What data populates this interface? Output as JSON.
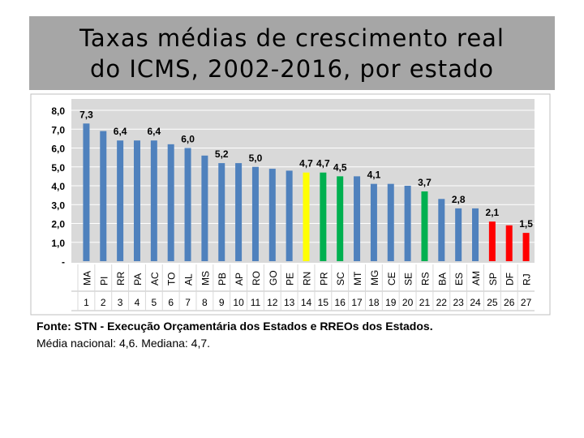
{
  "slide": {
    "title_line1": "Taxas médias de crescimento real",
    "title_line2": "do ICMS, 2002-2016, por estado"
  },
  "chart_data": {
    "type": "bar",
    "title": "Taxas médias de crescimento real do ICMS, 2002-2016, por estado",
    "categories": [
      "MA",
      "PI",
      "RR",
      "PA",
      "AC",
      "TO",
      "AL",
      "MS",
      "PB",
      "AP",
      "RO",
      "GO",
      "PE",
      "RN",
      "PR",
      "SC",
      "MT",
      "MG",
      "CE",
      "SE",
      "RS",
      "BA",
      "ES",
      "AM",
      "SP",
      "DF",
      "RJ"
    ],
    "ranks": [
      "1",
      "2",
      "3",
      "4",
      "5",
      "6",
      "7",
      "8",
      "9",
      "10",
      "11",
      "12",
      "13",
      "14",
      "15",
      "16",
      "17",
      "18",
      "19",
      "20",
      "21",
      "22",
      "23",
      "24",
      "25",
      "26",
      "27"
    ],
    "values": [
      7.3,
      6.9,
      6.4,
      6.4,
      6.4,
      6.2,
      6.0,
      5.6,
      5.2,
      5.2,
      5.0,
      4.9,
      4.8,
      4.7,
      4.7,
      4.5,
      4.5,
      4.1,
      4.1,
      4.0,
      3.7,
      3.3,
      2.8,
      2.8,
      2.1,
      1.9,
      1.5
    ],
    "labels": [
      "7,3",
      "",
      "6,4",
      "",
      "6,4",
      "",
      "6,0",
      "",
      "5,2",
      "",
      "5,0",
      "",
      "",
      "4,7",
      "4,7",
      "4,5",
      "",
      "4,1",
      "",
      "",
      "3,7",
      "",
      "2,8",
      "",
      "2,1",
      "",
      "1,5"
    ],
    "colors": [
      "#4f81bd",
      "#4f81bd",
      "#4f81bd",
      "#4f81bd",
      "#4f81bd",
      "#4f81bd",
      "#4f81bd",
      "#4f81bd",
      "#4f81bd",
      "#4f81bd",
      "#4f81bd",
      "#4f81bd",
      "#4f81bd",
      "#ffff00",
      "#00b050",
      "#00b050",
      "#4f81bd",
      "#4f81bd",
      "#4f81bd",
      "#4f81bd",
      "#00b050",
      "#4f81bd",
      "#4f81bd",
      "#4f81bd",
      "#ff0000",
      "#ff0000",
      "#ff0000"
    ],
    "ylim": [
      0,
      8
    ],
    "yticks": [
      "-",
      "1,0",
      "2,0",
      "3,0",
      "4,0",
      "5,0",
      "6,0",
      "7,0",
      "8,0"
    ],
    "grid": true,
    "plot_background": "#d9d9d9",
    "legend": "none"
  },
  "notes": {
    "source": "Fonte: STN - Execução Orçamentária dos Estados e RREOs dos Estados.",
    "summary": "Média nacional: 4,6. Mediana: 4,7."
  }
}
